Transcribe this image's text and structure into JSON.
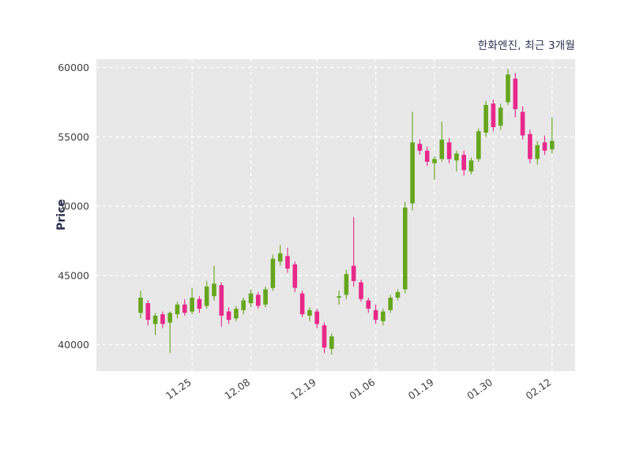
{
  "header": {
    "title": "한화엔진, 최근 3개월"
  },
  "chart_data": {
    "type": "candlestick",
    "title": "한화엔진, 최근 3개월",
    "xlabel": "",
    "ylabel": "Price",
    "ylim": [
      38100,
      60600
    ],
    "yticks": [
      40000,
      45000,
      50000,
      55000,
      60000
    ],
    "xticks": [
      {
        "index": 7,
        "label": "11.25"
      },
      {
        "index": 15,
        "label": "12.08"
      },
      {
        "index": 24,
        "label": "12.19"
      },
      {
        "index": 32,
        "label": "01.06"
      },
      {
        "index": 40,
        "label": "01.19"
      },
      {
        "index": 48,
        "label": "01.30"
      },
      {
        "index": 56,
        "label": "02.12"
      }
    ],
    "grid": "dashed white lines on gray panel, no axis spines",
    "legend": "none",
    "colors": {
      "up": "#66a61e",
      "down": "#e7298a",
      "plot_bg": "#e8e8e8",
      "grid": "#ffffff",
      "tick_text": "#3d3d3d",
      "title_text": "#2d3250"
    },
    "candles_note": "each candle is [open, high, low, close], estimated from pixels",
    "candles": [
      [
        42300,
        43900,
        41900,
        43400
      ],
      [
        43000,
        43200,
        41400,
        41800
      ],
      [
        41500,
        42300,
        40700,
        42100
      ],
      [
        42200,
        42400,
        41200,
        41500
      ],
      [
        41600,
        42400,
        39400,
        42300
      ],
      [
        42200,
        43100,
        41900,
        42900
      ],
      [
        42900,
        43300,
        42100,
        42300
      ],
      [
        42400,
        44100,
        42200,
        43400
      ],
      [
        43300,
        43500,
        42300,
        42600
      ],
      [
        42800,
        44600,
        42600,
        44200
      ],
      [
        43500,
        45700,
        43200,
        44400
      ],
      [
        44300,
        44500,
        41300,
        42100
      ],
      [
        42400,
        42700,
        41500,
        41800
      ],
      [
        41900,
        42800,
        41700,
        42600
      ],
      [
        42500,
        43400,
        42200,
        43200
      ],
      [
        43000,
        44000,
        42700,
        43700
      ],
      [
        43600,
        43800,
        42600,
        42800
      ],
      [
        42900,
        44200,
        42700,
        44000
      ],
      [
        44100,
        46500,
        43900,
        46200
      ],
      [
        46000,
        47200,
        45700,
        46600
      ],
      [
        46400,
        47000,
        45200,
        45500
      ],
      [
        45800,
        46000,
        43800,
        44100
      ],
      [
        43700,
        43900,
        42000,
        42200
      ],
      [
        42100,
        42700,
        41700,
        42500
      ],
      [
        42400,
        42600,
        41200,
        41500
      ],
      [
        41400,
        41600,
        39400,
        39800
      ],
      [
        39700,
        40800,
        39300,
        40600
      ],
      [
        43400,
        43900,
        42900,
        43500
      ],
      [
        43600,
        45400,
        43300,
        45100
      ],
      [
        45700,
        49200,
        44200,
        44600
      ],
      [
        44500,
        44700,
        43100,
        43300
      ],
      [
        43200,
        43400,
        42300,
        42600
      ],
      [
        42500,
        42900,
        41500,
        41800
      ],
      [
        41700,
        42600,
        41400,
        42400
      ],
      [
        42500,
        43600,
        42300,
        43400
      ],
      [
        43400,
        44000,
        43200,
        43800
      ],
      [
        44000,
        50300,
        43700,
        49900
      ],
      [
        50200,
        56800,
        49700,
        54600
      ],
      [
        54500,
        54800,
        53700,
        54000
      ],
      [
        54000,
        54300,
        52900,
        53200
      ],
      [
        53100,
        53600,
        51900,
        53400
      ],
      [
        53400,
        56100,
        53200,
        54800
      ],
      [
        54600,
        54900,
        53100,
        53400
      ],
      [
        53300,
        54000,
        52500,
        53800
      ],
      [
        53700,
        54000,
        52200,
        52600
      ],
      [
        52500,
        53500,
        52300,
        53300
      ],
      [
        53400,
        55600,
        53200,
        55400
      ],
      [
        55300,
        57600,
        55000,
        57300
      ],
      [
        57400,
        57700,
        55400,
        55700
      ],
      [
        55800,
        57400,
        55500,
        57100
      ],
      [
        57500,
        59900,
        57300,
        59500
      ],
      [
        59200,
        59600,
        56400,
        57000
      ],
      [
        56800,
        57200,
        54800,
        55100
      ],
      [
        55200,
        55500,
        53100,
        53400
      ],
      [
        53400,
        54700,
        53000,
        54400
      ],
      [
        54600,
        55100,
        53700,
        54000
      ],
      [
        54100,
        56400,
        53800,
        54700
      ]
    ]
  }
}
